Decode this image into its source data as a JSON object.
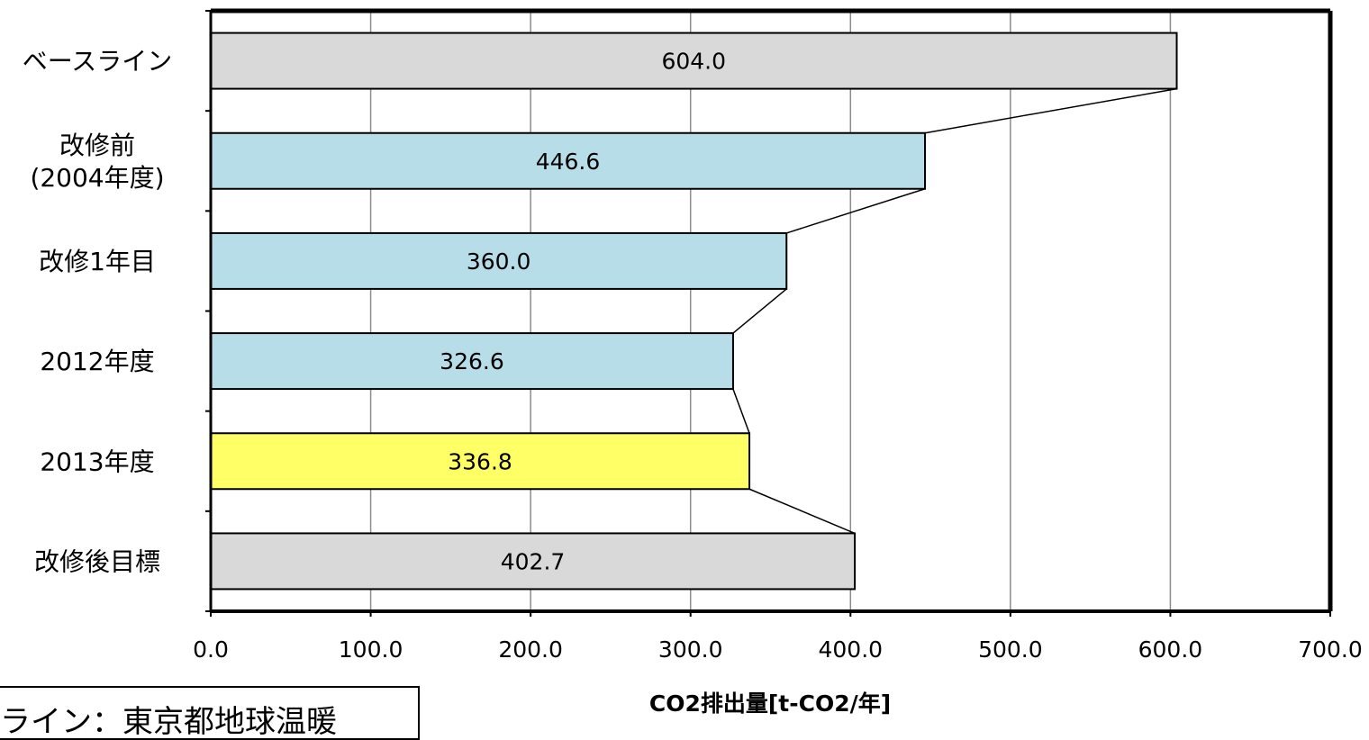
{
  "chart_data": {
    "type": "bar",
    "orientation": "horizontal",
    "categories": [
      [
        "ベースライン"
      ],
      [
        "改修前",
        "(2004年度)"
      ],
      [
        "改修1年目"
      ],
      [
        "2012年度"
      ],
      [
        "2013年度"
      ],
      [
        "改修後目標"
      ]
    ],
    "values": [
      604.0,
      446.6,
      360.0,
      326.6,
      336.8,
      402.7
    ],
    "value_labels": [
      "604.0",
      "446.6",
      "360.0",
      "326.6",
      "336.8",
      "402.7"
    ],
    "bar_colors": [
      "#d9d9d9",
      "#b7dde8",
      "#b7dde8",
      "#b7dde8",
      "#ffff66",
      "#d9d9d9"
    ],
    "xlabel": "CO2排出量[t-CO2/年]",
    "xlim": [
      0,
      700
    ],
    "x_ticks": [
      "0.0",
      "100.0",
      "200.0",
      "300.0",
      "400.0",
      "500.0",
      "600.0",
      "700.0"
    ],
    "grid": "vertical",
    "connector_lines": true
  },
  "note": {
    "text": "ライン：東京都地球温暖"
  }
}
